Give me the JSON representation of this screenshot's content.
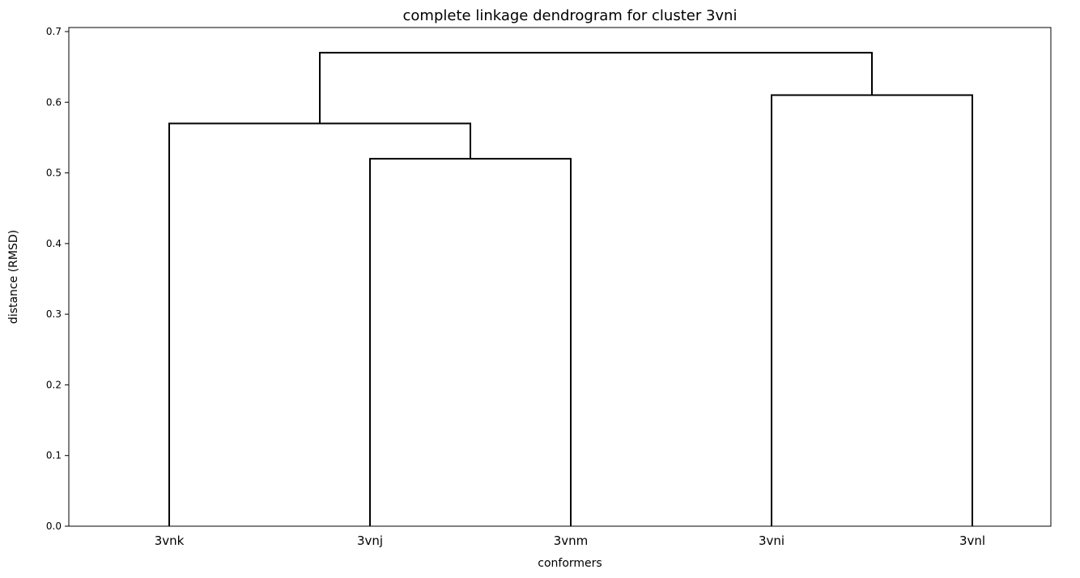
{
  "chart_data": {
    "type": "dendrogram",
    "title": "complete linkage dendrogram for cluster 3vni",
    "xlabel": "conformers",
    "ylabel": "distance (RMSD)",
    "ylim": [
      0,
      0.7
    ],
    "yticks": [
      "0.0",
      "0.1",
      "0.2",
      "0.3",
      "0.4",
      "0.5",
      "0.6",
      "0.7"
    ],
    "leaves": [
      "3vnk",
      "3vnj",
      "3vnm",
      "3vni",
      "3vnl"
    ],
    "merges": [
      {
        "left": "3vnj",
        "right": "3vnm",
        "distance": 0.52
      },
      {
        "left": "3vnk",
        "right": "3vnj+3vnm",
        "distance": 0.57
      },
      {
        "left": "3vni",
        "right": "3vnl",
        "distance": 0.61
      },
      {
        "left": "3vnk+3vnj+3vnm",
        "right": "3vni+3vnl",
        "distance": 0.67
      }
    ],
    "link_color": "#000000",
    "grid": false
  }
}
